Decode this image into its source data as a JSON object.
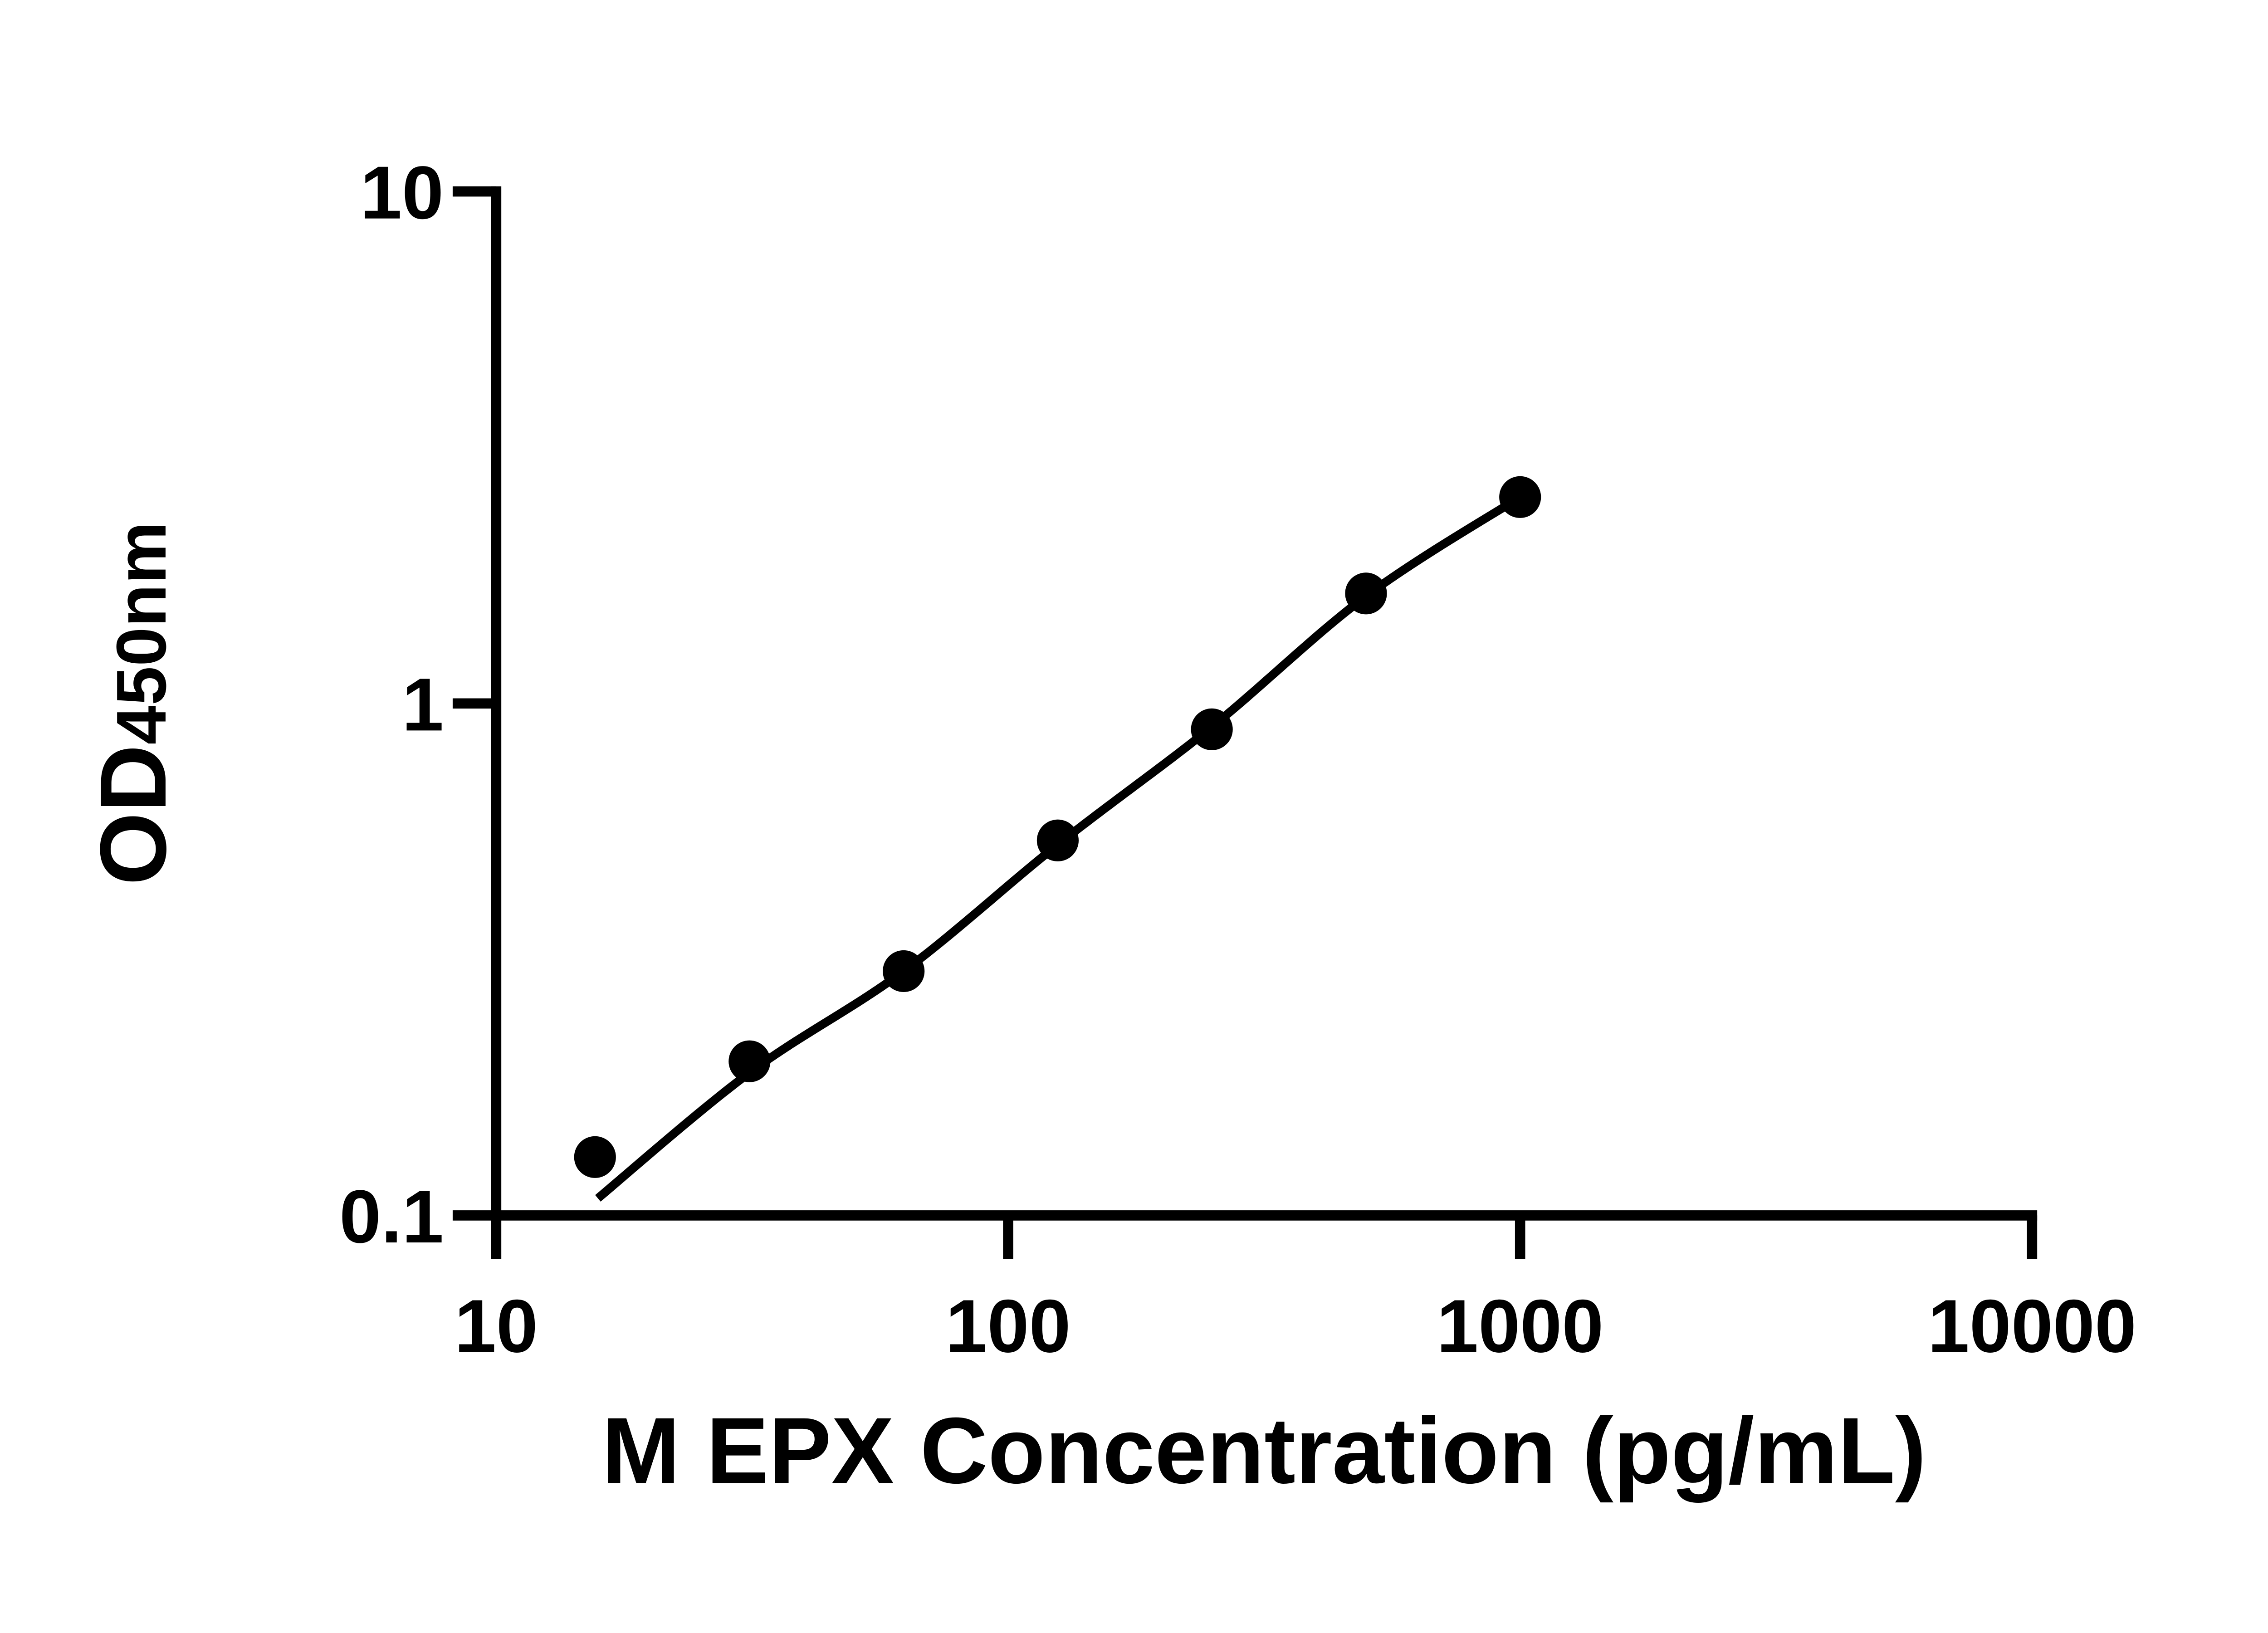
{
  "page": {
    "background": "#ffffff",
    "foreground": "#000000"
  },
  "chart_data": {
    "type": "scatter",
    "title": "",
    "xlabel": "M EPX Concentration (pg/mL)",
    "ylabel_main": "OD",
    "ylabel_sub": "450nm",
    "x_scale": "log",
    "y_scale": "log",
    "xlim": [
      10,
      10000
    ],
    "ylim": [
      0.1,
      10
    ],
    "x_ticks": [
      10,
      100,
      1000,
      10000
    ],
    "x_tick_labels": [
      "10",
      "100",
      "1000",
      "10000"
    ],
    "y_ticks": [
      0.1,
      1,
      10
    ],
    "y_tick_labels": [
      "0.1",
      "1",
      "10"
    ],
    "grid": false,
    "legend": false,
    "series": [
      {
        "name": "standard-curve-points",
        "marker": "filled-circle",
        "color": "#000000",
        "x": [
          15.6,
          31.25,
          62.5,
          125,
          250,
          500,
          1000
        ],
        "y": [
          0.13,
          0.2,
          0.3,
          0.54,
          0.89,
          1.64,
          2.53
        ]
      }
    ],
    "fit_curve": {
      "name": "four-parameter-fit-line",
      "color": "#000000",
      "x": [
        15.8,
        31.25,
        62.5,
        125,
        250,
        500,
        1000
      ],
      "y": [
        0.108,
        0.19,
        0.3,
        0.53,
        0.9,
        1.62,
        2.53
      ]
    }
  }
}
